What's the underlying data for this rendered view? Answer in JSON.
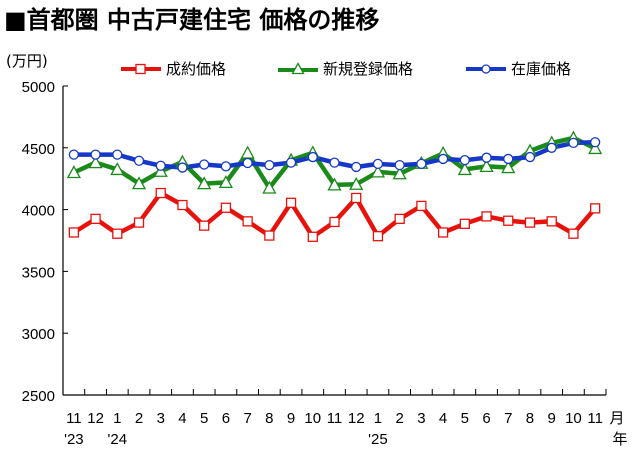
{
  "title": "■首都圏 中古戸建住宅 価格の推移",
  "unit_label": "(万円)",
  "legend": [
    {
      "label": "成約価格",
      "color": "#e8120c",
      "marker": "square"
    },
    {
      "label": "新規登録価格",
      "color": "#1a8a1a",
      "marker": "triangle"
    },
    {
      "label": "在庫価格",
      "color": "#1538c8",
      "marker": "circle"
    }
  ],
  "x_axis": {
    "month_suffix": "月",
    "year_suffix": "年",
    "month_labels": [
      "11",
      "12",
      "1",
      "2",
      "3",
      "4",
      "5",
      "6",
      "7",
      "8",
      "9",
      "10",
      "11",
      "12",
      "1",
      "2",
      "3",
      "4",
      "5",
      "6",
      "7",
      "8",
      "9",
      "10",
      "11"
    ],
    "year_labels": [
      {
        "index": 0,
        "label": "'23"
      },
      {
        "index": 2,
        "label": "'24"
      },
      {
        "index": 14,
        "label": "'25"
      }
    ]
  },
  "chart_data": {
    "type": "line",
    "title": "■首都圏 中古戸建住宅 価格の推移",
    "xlabel": "月 / 年",
    "ylabel": "(万円)",
    "ylim": [
      2500,
      5000
    ],
    "yticks": [
      2500,
      3000,
      3500,
      4000,
      4500,
      5000
    ],
    "grid": false,
    "legend_position": "top",
    "categories": [
      "2023-11",
      "2023-12",
      "2024-01",
      "2024-02",
      "2024-03",
      "2024-04",
      "2024-05",
      "2024-06",
      "2024-07",
      "2024-08",
      "2024-09",
      "2024-10",
      "2024-11",
      "2024-12",
      "2025-01",
      "2025-02",
      "2025-03",
      "2025-04",
      "2025-05",
      "2025-06",
      "2025-07",
      "2025-08",
      "2025-09",
      "2025-10",
      "2025-11"
    ],
    "series": [
      {
        "name": "成約価格",
        "color": "#e8120c",
        "marker": "square",
        "values": [
          3815,
          3925,
          3805,
          3895,
          4134,
          4037,
          3870,
          4015,
          3905,
          3790,
          4055,
          3780,
          3900,
          4094,
          3785,
          3925,
          4030,
          3815,
          3885,
          3945,
          3910,
          3895,
          3905,
          3805,
          4010
        ]
      },
      {
        "name": "新規登録価格",
        "color": "#1a8a1a",
        "marker": "triangle",
        "values": [
          4300,
          4380,
          4325,
          4210,
          4310,
          4385,
          4210,
          4220,
          4458,
          4175,
          4400,
          4460,
          4200,
          4205,
          4305,
          4290,
          4375,
          4455,
          4325,
          4350,
          4340,
          4475,
          4540,
          4580,
          4495
        ]
      },
      {
        "name": "在庫価格",
        "color": "#1538c8",
        "marker": "circle",
        "values": [
          4445,
          4445,
          4445,
          4395,
          4355,
          4340,
          4365,
          4350,
          4377,
          4360,
          4380,
          4425,
          4380,
          4345,
          4370,
          4360,
          4370,
          4410,
          4400,
          4420,
          4410,
          4425,
          4500,
          4540,
          4545
        ]
      }
    ]
  }
}
